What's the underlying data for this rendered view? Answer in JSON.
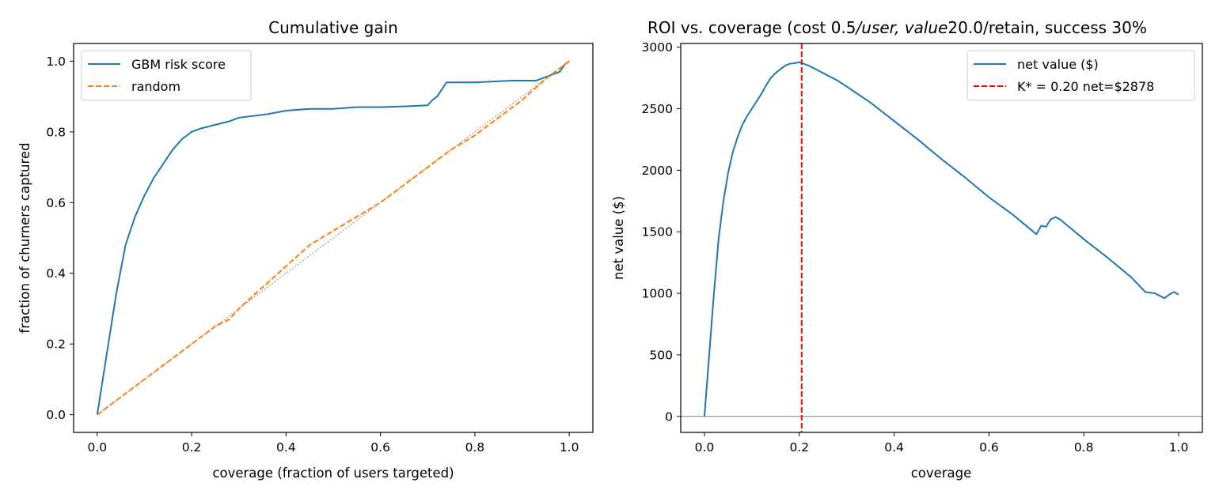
{
  "chart_data": [
    {
      "type": "line",
      "title": "Cumulative gain",
      "xlabel": "coverage (fraction of users targeted)",
      "ylabel": "fraction of churners captured",
      "xlim": [
        -0.05,
        1.05
      ],
      "ylim": [
        -0.05,
        1.05
      ],
      "xticks": [
        0.0,
        0.2,
        0.4,
        0.6,
        0.8,
        1.0
      ],
      "xtick_labels": [
        "0.0",
        "0.2",
        "0.4",
        "0.6",
        "0.8",
        "1.0"
      ],
      "yticks": [
        0.0,
        0.2,
        0.4,
        0.6,
        0.8,
        1.0
      ],
      "ytick_labels": [
        "0.0",
        "0.2",
        "0.4",
        "0.6",
        "0.8",
        "1.0"
      ],
      "grid": false,
      "legend": "upper-left",
      "series": [
        {
          "name": "GBM risk score",
          "color": "#1f77b4",
          "style": "solid",
          "x": [
            0.0,
            0.02,
            0.04,
            0.06,
            0.08,
            0.1,
            0.12,
            0.14,
            0.16,
            0.18,
            0.2,
            0.22,
            0.25,
            0.28,
            0.3,
            0.33,
            0.36,
            0.4,
            0.45,
            0.5,
            0.55,
            0.6,
            0.65,
            0.7,
            0.71,
            0.72,
            0.73,
            0.74,
            0.8,
            0.88,
            0.93,
            0.96,
            0.98,
            0.99,
            1.0
          ],
          "y": [
            0.0,
            0.17,
            0.34,
            0.48,
            0.56,
            0.62,
            0.67,
            0.71,
            0.75,
            0.78,
            0.8,
            0.81,
            0.82,
            0.83,
            0.84,
            0.845,
            0.85,
            0.86,
            0.865,
            0.865,
            0.87,
            0.87,
            0.872,
            0.875,
            0.89,
            0.9,
            0.92,
            0.94,
            0.94,
            0.945,
            0.945,
            0.96,
            0.97,
            0.99,
            1.0
          ]
        },
        {
          "name": "random",
          "color": "#ff7f0e",
          "style": "dashed",
          "x": [
            0.0,
            0.05,
            0.1,
            0.15,
            0.2,
            0.25,
            0.28,
            0.3,
            0.35,
            0.4,
            0.45,
            0.5,
            0.55,
            0.6,
            0.65,
            0.7,
            0.75,
            0.8,
            0.85,
            0.9,
            0.95,
            1.0
          ],
          "y": [
            0.0,
            0.05,
            0.1,
            0.15,
            0.2,
            0.25,
            0.27,
            0.3,
            0.36,
            0.42,
            0.48,
            0.52,
            0.56,
            0.6,
            0.65,
            0.7,
            0.75,
            0.79,
            0.84,
            0.89,
            0.95,
            1.0
          ]
        }
      ],
      "reference_line": {
        "x": [
          0.0,
          1.0
        ],
        "y": [
          0.0,
          1.0
        ],
        "color": "#808080",
        "style": "dotted"
      }
    },
    {
      "type": "line",
      "title": "ROI vs. coverage (cost 0.5/user, value 20.0/retain, success 30%)",
      "title_parts": {
        "a": "ROI vs. coverage (cost 0.5",
        "b": "/user, value",
        "c": "20.0/retain, success 30%"
      },
      "xlabel": "coverage",
      "ylabel": "net value ($)",
      "xlim": [
        -0.05,
        1.05
      ],
      "ylim": [
        -130,
        3030
      ],
      "xticks": [
        0.0,
        0.2,
        0.4,
        0.6,
        0.8,
        1.0
      ],
      "xtick_labels": [
        "0.0",
        "0.2",
        "0.4",
        "0.6",
        "0.8",
        "1.0"
      ],
      "yticks": [
        0,
        500,
        1000,
        1500,
        2000,
        2500,
        3000
      ],
      "ytick_labels": [
        "0",
        "500",
        "1000",
        "1500",
        "2000",
        "2500",
        "3000"
      ],
      "grid": false,
      "legend": "upper-right",
      "zero_line": {
        "y": 0,
        "color": "#808080"
      },
      "series": [
        {
          "name": "net value ($)",
          "color": "#1f77b4",
          "style": "solid",
          "x": [
            0.0,
            0.01,
            0.02,
            0.03,
            0.04,
            0.05,
            0.06,
            0.07,
            0.08,
            0.09,
            0.1,
            0.11,
            0.12,
            0.13,
            0.14,
            0.15,
            0.16,
            0.17,
            0.18,
            0.19,
            0.2,
            0.22,
            0.25,
            0.28,
            0.3,
            0.35,
            0.4,
            0.45,
            0.5,
            0.55,
            0.6,
            0.65,
            0.7,
            0.71,
            0.72,
            0.73,
            0.74,
            0.75,
            0.8,
            0.85,
            0.9,
            0.93,
            0.95,
            0.97,
            0.98,
            0.99,
            1.0
          ],
          "y": [
            0,
            500,
            1000,
            1450,
            1750,
            1980,
            2150,
            2270,
            2370,
            2440,
            2500,
            2560,
            2620,
            2690,
            2750,
            2790,
            2820,
            2850,
            2865,
            2870,
            2878,
            2850,
            2790,
            2730,
            2680,
            2550,
            2400,
            2250,
            2090,
            1940,
            1780,
            1640,
            1480,
            1550,
            1540,
            1600,
            1620,
            1600,
            1440,
            1290,
            1130,
            1010,
            1000,
            960,
            990,
            1010,
            990
          ]
        },
        {
          "name": "K* = 0.20  net=$2878",
          "color": "#ff0000",
          "style": "dashed",
          "vline_x": 0.205
        }
      ]
    }
  ]
}
